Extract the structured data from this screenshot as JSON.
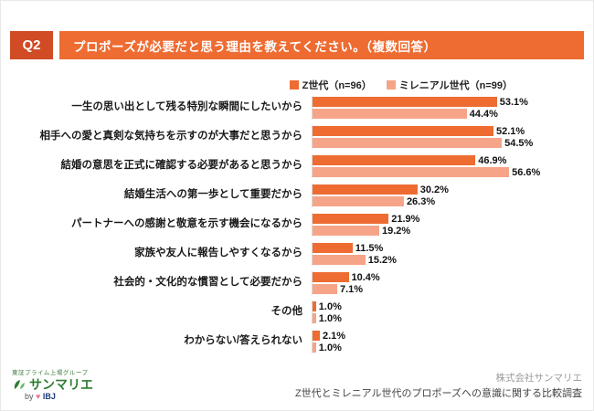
{
  "header": {
    "q_label": "Q2",
    "title": "プロポーズが必要だと思う理由を教えてください。（複数回答）"
  },
  "legend": [
    {
      "label": "Z世代（n=96）",
      "color": "#ee6c32"
    },
    {
      "label": "ミレニアル世代（n=99）",
      "color": "#f6a487"
    }
  ],
  "chart_data": {
    "type": "bar",
    "orientation": "horizontal",
    "title": "プロポーズが必要だと思う理由を教えてください。（複数回答）",
    "xlabel": "",
    "ylabel": "",
    "xlim": [
      0,
      60
    ],
    "grid": false,
    "legend_position": "top-right",
    "series": [
      {
        "name": "Z世代（n=96）",
        "color": "#ee6c32"
      },
      {
        "name": "ミレニアル世代（n=99）",
        "color": "#f6a487"
      }
    ],
    "rows": [
      {
        "label": "一生の思い出として残る特別な瞬間にしたいから",
        "z": 53.1,
        "m": 44.4,
        "z_label": "53.1%",
        "m_label": "44.4%"
      },
      {
        "label": "相手への愛と真剣な気持ちを示すのが大事だと思うから",
        "z": 52.1,
        "m": 54.5,
        "z_label": "52.1%",
        "m_label": "54.5%"
      },
      {
        "label": "結婚の意思を正式に確認する必要があると思うから",
        "z": 46.9,
        "m": 56.6,
        "z_label": "46.9%",
        "m_label": "56.6%"
      },
      {
        "label": "結婚生活への第一歩として重要だから",
        "z": 30.2,
        "m": 26.3,
        "z_label": "30.2%",
        "m_label": "26.3%"
      },
      {
        "label": "パートナーへの感謝と敬意を示す機会になるから",
        "z": 21.9,
        "m": 19.2,
        "z_label": "21.9%",
        "m_label": "19.2%"
      },
      {
        "label": "家族や友人に報告しやすくなるから",
        "z": 11.5,
        "m": 15.2,
        "z_label": "11.5%",
        "m_label": "15.2%"
      },
      {
        "label": "社会的・文化的な慣習として必要だから",
        "z": 10.4,
        "m": 7.1,
        "z_label": "10.4%",
        "m_label": "7.1%"
      },
      {
        "label": "その他",
        "z": 1.0,
        "m": 1.0,
        "z_label": "1.0%",
        "m_label": "1.0%"
      },
      {
        "label": "わからない/答えられない",
        "z": 2.1,
        "m": 1.0,
        "z_label": "2.1%",
        "m_label": "1.0%"
      }
    ]
  },
  "footer": {
    "logo_tagline": "東証プライム上場グループ",
    "logo_name": "サンマリエ",
    "logo_by_prefix": "by",
    "logo_heart": "♥",
    "logo_by_brand": "IBJ",
    "credit_company": "株式会社サンマリエ",
    "credit_survey": "Z世代とミレニアル世代のプロポーズへの意識に関する比較調査"
  }
}
